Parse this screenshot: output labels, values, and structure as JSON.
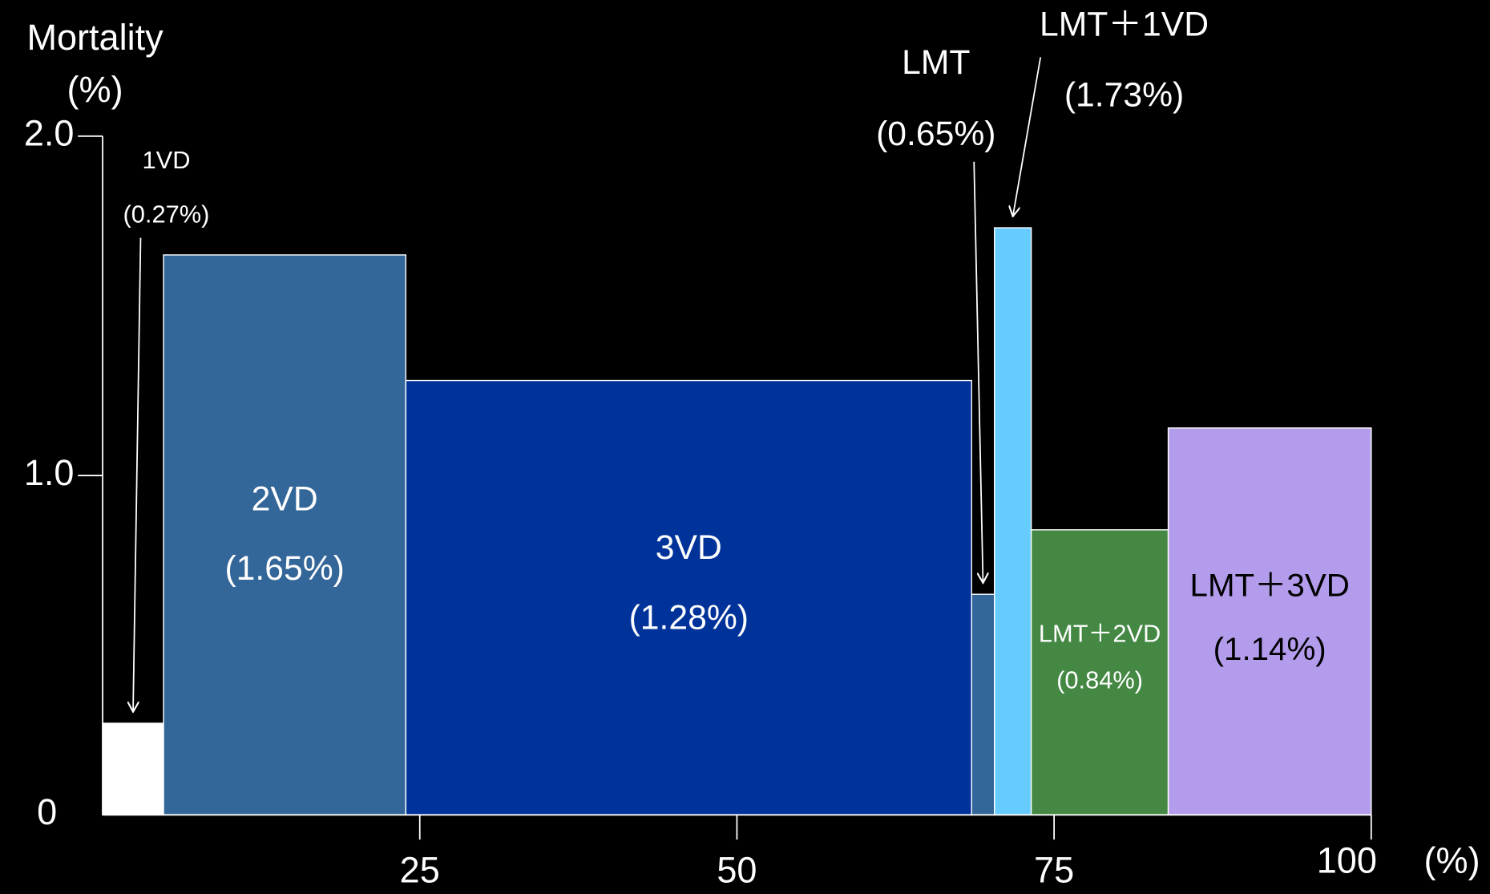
{
  "chart_data": {
    "type": "histogram",
    "ylabel": "Mortality",
    "yunit": "(%)",
    "xlabel": "(%)",
    "bins": [
      0,
      4.8,
      23.9,
      68.5,
      70.3,
      73.2,
      84.0,
      100
    ],
    "categories": [
      "1VD",
      "2VD",
      "3VD",
      "LMT",
      "LMT＋1VD",
      "LMT＋2VD",
      "LMT＋3VD"
    ],
    "values": [
      0.27,
      1.65,
      1.28,
      0.65,
      1.73,
      0.84,
      1.14
    ],
    "value_labels": [
      "(0.27%)",
      "(1.65%)",
      "(1.28%)",
      "(0.65%)",
      "(1.73%)",
      "(0.84%)",
      "(1.14%)"
    ],
    "colors": [
      "#ffffff",
      "#336699",
      "#003399",
      "#336699",
      "#66ccff",
      "#448844",
      "#b39ceb"
    ],
    "xlim": [
      0,
      100
    ],
    "xticks": [
      25,
      50,
      75,
      100
    ],
    "ylim": [
      0,
      2
    ],
    "yticks": [
      0,
      {
        "value": 1,
        "label": "1.0"
      },
      {
        "value": 2,
        "label": "2.0"
      }
    ]
  }
}
